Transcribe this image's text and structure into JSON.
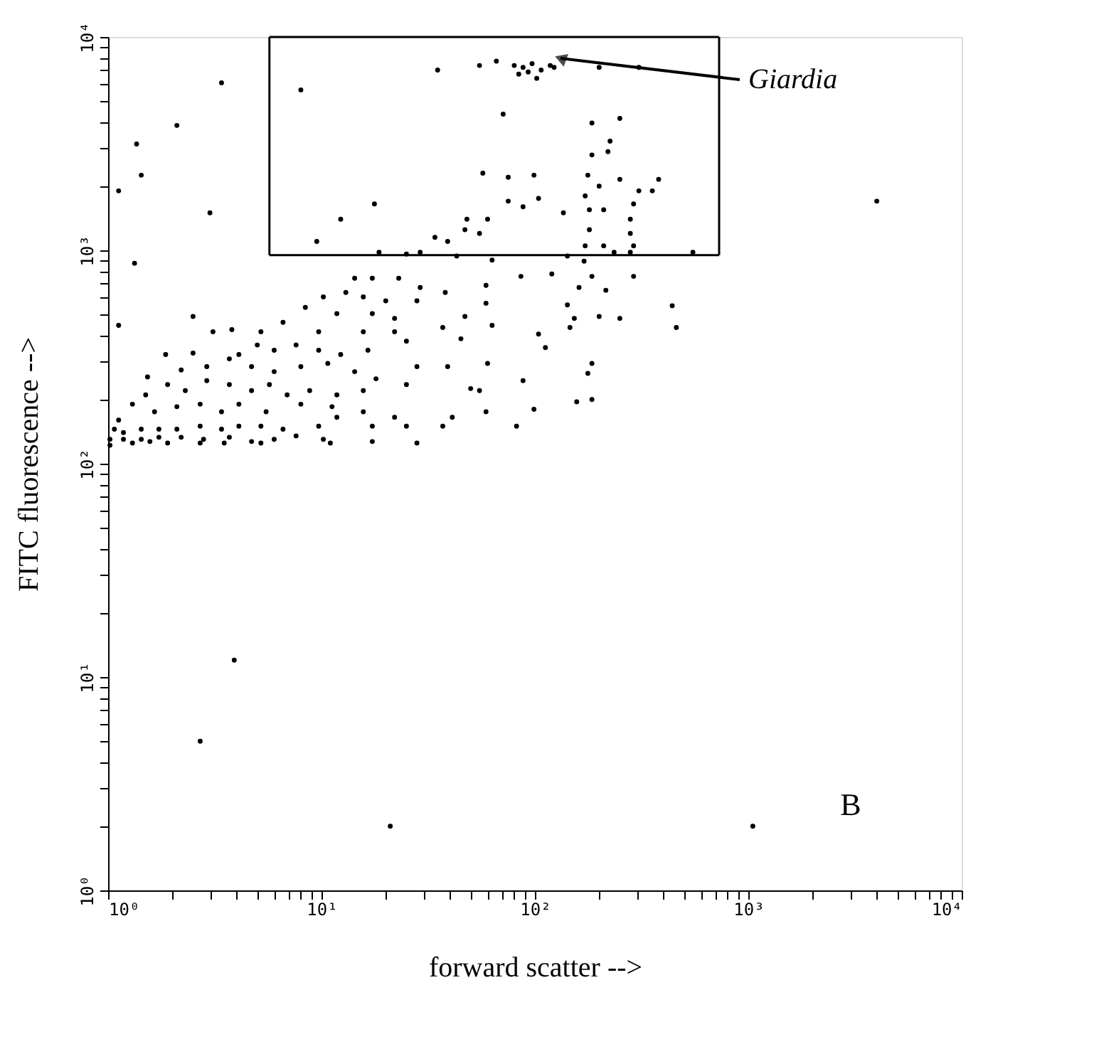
{
  "chart_data": {
    "type": "scatter",
    "xlabel": "forward scatter -->",
    "ylabel": "FITC fluorescence -->",
    "log": "xy",
    "grid": false,
    "marker": "circle",
    "xlim": [
      1,
      10000
    ],
    "ylim": [
      1,
      10000
    ],
    "xticks": [
      {
        "value": 1,
        "label": "10⁰"
      },
      {
        "value": 2,
        "label": null
      },
      {
        "value": 3,
        "label": null
      },
      {
        "value": 4,
        "label": null
      },
      {
        "value": 5,
        "label": null
      },
      {
        "value": 6,
        "label": null
      },
      {
        "value": 7,
        "label": null
      },
      {
        "value": 8,
        "label": null
      },
      {
        "value": 9,
        "label": null
      },
      {
        "value": 10,
        "label": "10¹"
      },
      {
        "value": 20,
        "label": null
      },
      {
        "value": 30,
        "label": null
      },
      {
        "value": 40,
        "label": null
      },
      {
        "value": 50,
        "label": null
      },
      {
        "value": 60,
        "label": null
      },
      {
        "value": 70,
        "label": null
      },
      {
        "value": 80,
        "label": null
      },
      {
        "value": 90,
        "label": null
      },
      {
        "value": 100,
        "label": "10²"
      },
      {
        "value": 200,
        "label": null
      },
      {
        "value": 300,
        "label": null
      },
      {
        "value": 400,
        "label": null
      },
      {
        "value": 500,
        "label": null
      },
      {
        "value": 600,
        "label": null
      },
      {
        "value": 700,
        "label": null
      },
      {
        "value": 800,
        "label": null
      },
      {
        "value": 900,
        "label": null
      },
      {
        "value": 1000,
        "label": "10³"
      },
      {
        "value": 2000,
        "label": null
      },
      {
        "value": 3000,
        "label": null
      },
      {
        "value": 4000,
        "label": null
      },
      {
        "value": 5000,
        "label": null
      },
      {
        "value": 6000,
        "label": null
      },
      {
        "value": 7000,
        "label": null
      },
      {
        "value": 8000,
        "label": null
      },
      {
        "value": 9000,
        "label": null
      },
      {
        "value": 10000,
        "label": "10⁴"
      }
    ],
    "yticks": [
      {
        "value": 1,
        "label": "10⁰"
      },
      {
        "value": 2,
        "label": null
      },
      {
        "value": 3,
        "label": null
      },
      {
        "value": 4,
        "label": null
      },
      {
        "value": 5,
        "label": null
      },
      {
        "value": 6,
        "label": null
      },
      {
        "value": 7,
        "label": null
      },
      {
        "value": 8,
        "label": null
      },
      {
        "value": 9,
        "label": null
      },
      {
        "value": 10,
        "label": "10¹"
      },
      {
        "value": 20,
        "label": null
      },
      {
        "value": 30,
        "label": null
      },
      {
        "value": 40,
        "label": null
      },
      {
        "value": 50,
        "label": null
      },
      {
        "value": 60,
        "label": null
      },
      {
        "value": 70,
        "label": null
      },
      {
        "value": 80,
        "label": null
      },
      {
        "value": 90,
        "label": null
      },
      {
        "value": 100,
        "label": "10²"
      },
      {
        "value": 200,
        "label": null
      },
      {
        "value": 300,
        "label": null
      },
      {
        "value": 400,
        "label": null
      },
      {
        "value": 500,
        "label": null
      },
      {
        "value": 600,
        "label": null
      },
      {
        "value": 700,
        "label": null
      },
      {
        "value": 800,
        "label": null
      },
      {
        "value": 900,
        "label": null
      },
      {
        "value": 1000,
        "label": "10³"
      },
      {
        "value": 2000,
        "label": null
      },
      {
        "value": 3000,
        "label": null
      },
      {
        "value": 4000,
        "label": null
      },
      {
        "value": 5000,
        "label": null
      },
      {
        "value": 6000,
        "label": null
      },
      {
        "value": 7000,
        "label": null
      },
      {
        "value": 8000,
        "label": null
      },
      {
        "value": 9000,
        "label": null
      },
      {
        "value": 10000,
        "label": "10⁴"
      }
    ],
    "annotations": [
      "Giardia",
      "B"
    ],
    "series": [
      {
        "type": "line",
        "color": "#000000",
        "marker": "none",
        "x": [
          5.7,
          730
        ],
        "values": [
          10000,
          10000
        ]
      },
      {
        "type": "line",
        "color": "#000000",
        "marker": "none",
        "x": [
          5.7,
          730
        ],
        "values": [
          950,
          950
        ]
      },
      {
        "type": "line",
        "color": "#000000",
        "marker": "none",
        "x": [
          5.7,
          5.7
        ],
        "values": [
          950,
          10000
        ]
      },
      {
        "type": "line",
        "color": "#000000",
        "marker": "none",
        "x": [
          730,
          730
        ],
        "values": [
          950,
          10000
        ]
      },
      {
        "type": "scatter",
        "color": "#000000",
        "x": [
          80,
          88,
          97,
          107,
          118,
          84,
          102,
          66,
          123,
          93,
          55,
          35,
          200,
          307,
          8.0,
          71,
          185,
          250,
          225,
          185,
          220,
          57,
          75,
          99,
          177,
          250,
          380,
          307,
          355,
          200,
          172,
          75,
          88,
          104,
          17.7,
          12.3,
          136,
          180,
          210,
          280,
          290,
          48,
          60,
          47,
          55,
          180,
          280,
          34,
          39,
          9.5,
          172,
          210,
          290,
          235,
          280,
          550,
          18.6,
          25,
          29,
          43,
          63,
          142,
          170,
          3.4,
          2.1,
          1.36,
          1.43,
          1.12,
          1.33,
          2.5,
          1.12,
          3.0,
          14.3,
          17.3,
          23,
          29,
          86,
          120,
          290,
          185,
          161,
          215,
          59,
          38,
          13,
          10.2,
          15.7,
          20,
          28,
          59,
          142,
          8.4,
          11.8,
          17.3,
          22,
          47,
          153,
          200,
          250,
          460,
          6.6,
          9.7,
          15.7,
          22,
          37,
          63,
          146,
          5.2,
          3.8,
          3.1,
          25,
          45,
          104,
          112,
          4.1,
          5.0,
          6.0,
          7.6,
          9.7,
          12.3,
          16.5,
          2.5,
          1.86,
          60,
          185,
          177,
          39,
          28,
          18,
          14.3,
          10.7,
          8.0,
          6.0,
          4.7,
          3.7,
          2.9,
          2.2,
          1.53,
          50,
          55,
          88,
          25,
          15.7,
          11.8,
          8.8,
          6.9,
          5.7,
          4.7,
          3.7,
          2.9,
          2.3,
          1.9,
          1.5,
          1.3,
          157,
          185,
          99,
          59,
          41,
          22,
          15.7,
          11.2,
          8.0,
          5.5,
          4.1,
          3.4,
          2.7,
          2.1,
          1.65,
          1.12,
          82,
          37,
          25,
          17.3,
          11.8,
          9.7,
          6.6,
          5.2,
          4.1,
          3.4,
          2.7,
          2.1,
          1.73,
          1.43,
          1.18,
          1.07,
          1.02,
          1.18,
          1.43,
          1.73,
          2.2,
          2.8,
          3.7,
          4.7,
          6.0,
          7.6,
          10.2,
          17.3,
          28,
          1.02,
          1.3,
          1.57,
          1.9,
          2.7,
          3.5,
          5.2,
          11,
          2.7,
          3.9,
          21,
          4000,
          440,
          1050
        ],
        "values": [
          7350,
          7200,
          7500,
          7000,
          7350,
          6700,
          6400,
          7700,
          7200,
          6850,
          7350,
          7000,
          7200,
          7200,
          5650,
          4350,
          3950,
          4150,
          3250,
          2800,
          2900,
          2300,
          2200,
          2250,
          2250,
          2150,
          2150,
          1900,
          1900,
          2000,
          1800,
          1700,
          1600,
          1750,
          1650,
          1400,
          1500,
          1550,
          1550,
          1400,
          1650,
          1400,
          1400,
          1250,
          1200,
          1250,
          1200,
          1150,
          1100,
          1100,
          1050,
          1050,
          1050,
          980,
          980,
          980,
          980,
          960,
          980,
          940,
          900,
          940,
          890,
          6100,
          3850,
          3150,
          2250,
          1900,
          870,
          490,
          445,
          1500,
          740,
          740,
          740,
          670,
          755,
          775,
          755,
          755,
          670,
          650,
          685,
          635,
          635,
          605,
          605,
          580,
          580,
          565,
          555,
          540,
          505,
          505,
          480,
          490,
          480,
          490,
          480,
          435,
          460,
          415,
          415,
          415,
          435,
          445,
          435,
          415,
          425,
          415,
          375,
          385,
          405,
          350,
          325,
          360,
          340,
          360,
          340,
          325,
          340,
          330,
          325,
          295,
          295,
          265,
          285,
          285,
          250,
          270,
          295,
          285,
          270,
          285,
          310,
          285,
          275,
          255,
          225,
          220,
          245,
          235,
          220,
          210,
          220,
          210,
          235,
          220,
          235,
          245,
          220,
          235,
          210,
          190,
          195,
          200,
          180,
          175,
          165,
          165,
          175,
          185,
          190,
          175,
          190,
          175,
          190,
          185,
          175,
          160,
          150,
          150,
          150,
          150,
          165,
          150,
          145,
          150,
          150,
          145,
          150,
          145,
          145,
          145,
          140,
          145,
          130,
          130,
          130,
          133,
          133,
          130,
          133,
          127,
          130,
          135,
          130,
          127,
          125,
          122,
          125,
          127,
          125,
          125,
          125,
          125,
          125,
          5,
          12,
          2,
          1700,
          550,
          2
        ]
      }
    ]
  }
}
